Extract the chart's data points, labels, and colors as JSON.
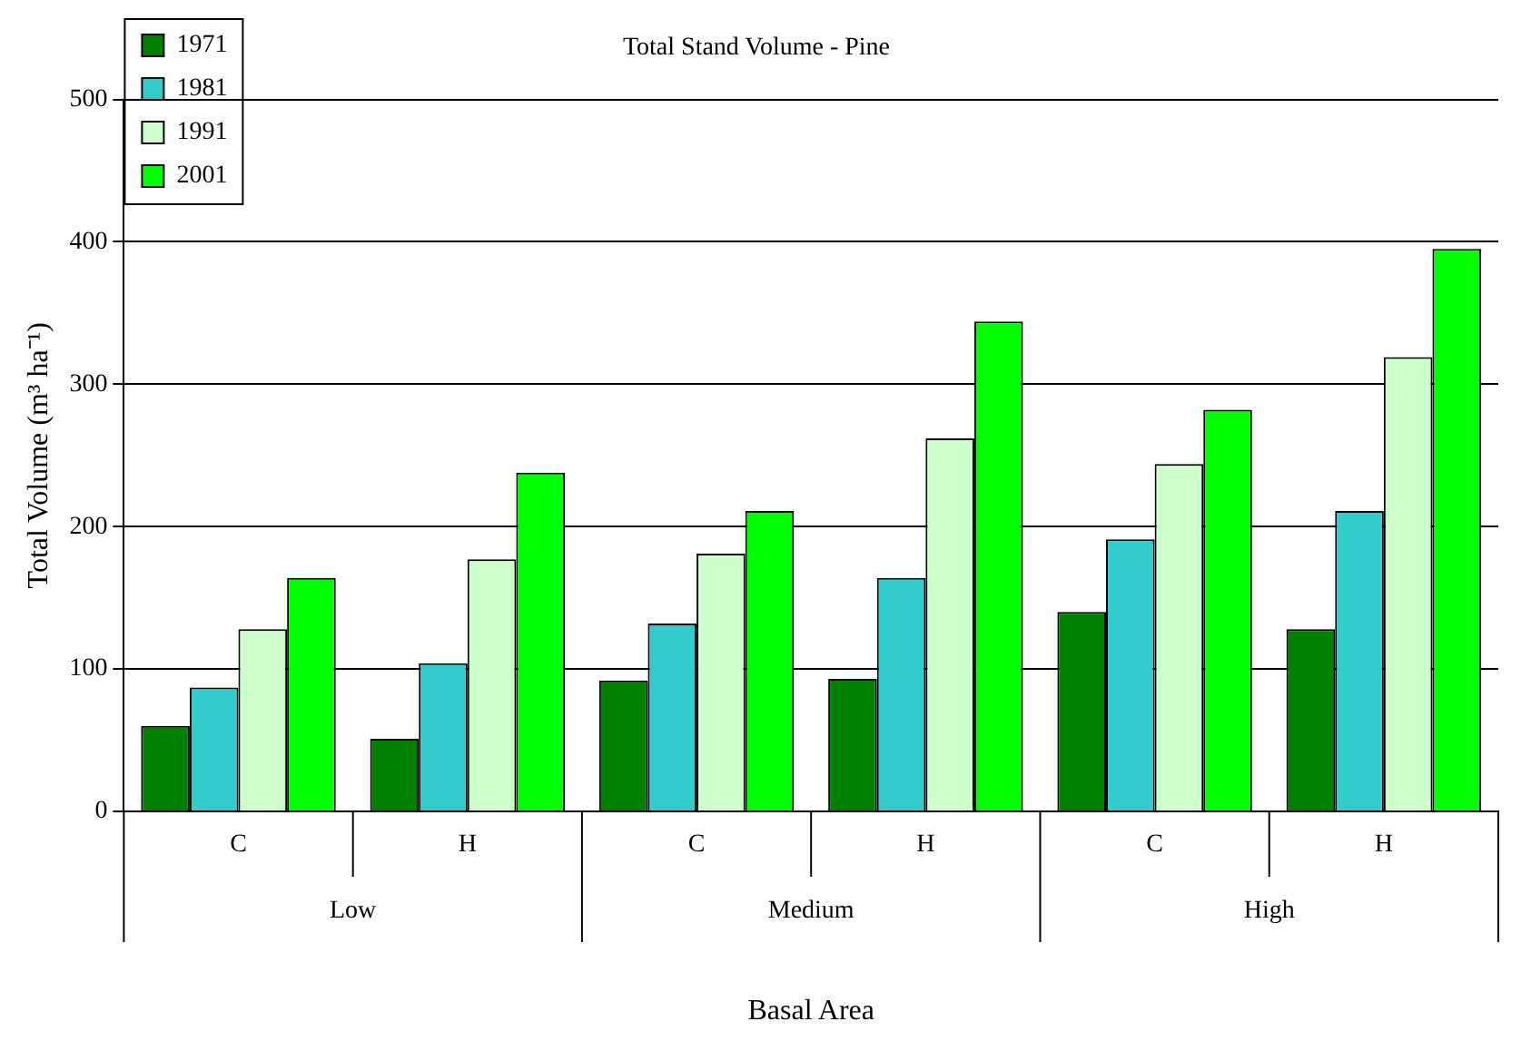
{
  "chart_data": {
    "type": "bar",
    "title": "Total Stand Volume - Pine",
    "xlabel": "Basal Area",
    "ylabel": "Total Volume (m³ ha⁻¹)",
    "categories": [
      "C",
      "H",
      "C",
      "H",
      "C",
      "H"
    ],
    "annotations": [
      "Low",
      "Medium",
      "High"
    ],
    "series": [
      {
        "name": "1971",
        "color": "#008000",
        "values": [
          60,
          51,
          92,
          93,
          140,
          128
        ]
      },
      {
        "name": "1981",
        "color": "#33cccc",
        "values": [
          87,
          104,
          132,
          164,
          191,
          211
        ]
      },
      {
        "name": "1991",
        "color": "#ccffcc",
        "values": [
          128,
          177,
          181,
          262,
          244,
          319
        ]
      },
      {
        "name": "2001",
        "color": "#00ff00",
        "values": [
          164,
          238,
          211,
          344,
          282,
          395
        ]
      }
    ],
    "ylim": [
      0,
      500
    ],
    "yticks": [
      0,
      100,
      200,
      300,
      400,
      500
    ],
    "grid": "y",
    "legend": "top left"
  }
}
